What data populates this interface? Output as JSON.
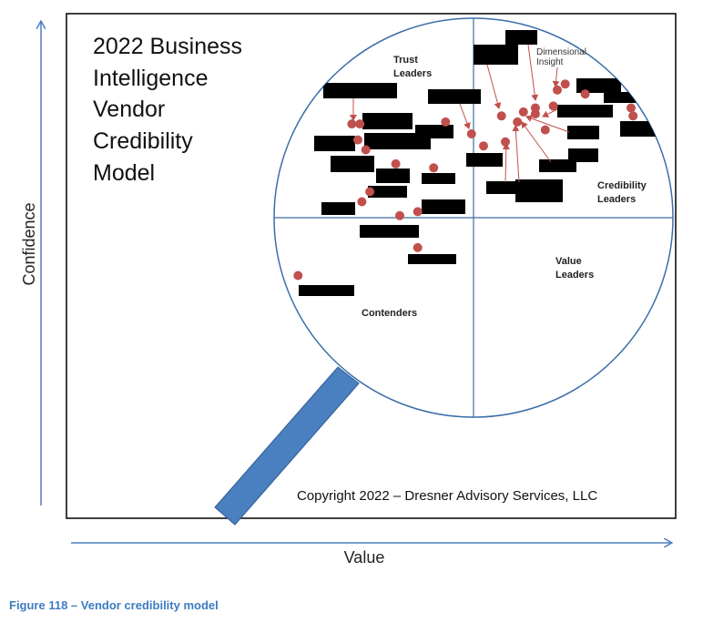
{
  "colors": {
    "axis_arrow": "#4a7fc0",
    "quadrant_line": "#3b6ea8",
    "handle": "#4a7fc0",
    "point": "#c0504d",
    "caption": "#3c7cc0",
    "redaction": "#000000"
  },
  "figure": {
    "caption": "Figure 118 – Vendor credibility model"
  },
  "chart_data": {
    "type": "scatter",
    "title_lines": [
      "2022 Business",
      "Intelligence",
      "Vendor",
      "Credibility",
      "Model"
    ],
    "xlabel": "Value",
    "ylabel": "Confidence",
    "copyright": "Copyright 2022 – Dresner Advisory Services, LLC",
    "quadrants": {
      "top_left": "Trust Leaders",
      "top_right": "Credibility Leaders",
      "bottom_left": "Contenders",
      "bottom_right": "Value Leaders"
    },
    "quadrant_label_lines": {
      "top_left": [
        "Trust",
        "Leaders"
      ],
      "top_right": [
        "Credibility",
        "Leaders"
      ],
      "bottom_left": [
        "Contenders"
      ],
      "bottom_right": [
        "Value",
        "Leaders"
      ]
    },
    "annotation": {
      "text": "Dimensional Insight",
      "lines": [
        "Dimensional",
        "Insight"
      ]
    },
    "axis_tick_labels": false,
    "grid": false,
    "quadrant_divider": {
      "x": 0,
      "y": 0
    },
    "xlim": [
      -1,
      1
    ],
    "ylim": [
      -1,
      1
    ],
    "points": [
      {
        "x": -0.61,
        "y": 0.47
      },
      {
        "x": -0.57,
        "y": 0.47
      },
      {
        "x": -0.58,
        "y": 0.39
      },
      {
        "x": -0.54,
        "y": 0.34
      },
      {
        "x": -0.39,
        "y": 0.27
      },
      {
        "x": -0.2,
        "y": 0.25
      },
      {
        "x": -0.52,
        "y": 0.13
      },
      {
        "x": -0.56,
        "y": 0.08
      },
      {
        "x": -0.37,
        "y": 0.01
      },
      {
        "x": -0.28,
        "y": 0.03
      },
      {
        "x": -0.28,
        "y": -0.15
      },
      {
        "x": -0.88,
        "y": -0.29
      },
      {
        "x": -0.14,
        "y": 0.48
      },
      {
        "x": -0.01,
        "y": 0.42
      },
      {
        "x": 0.05,
        "y": 0.36
      },
      {
        "x": 0.14,
        "y": 0.51
      },
      {
        "x": 0.22,
        "y": 0.48
      },
      {
        "x": 0.25,
        "y": 0.53
      },
      {
        "x": 0.31,
        "y": 0.55
      },
      {
        "x": 0.31,
        "y": 0.52
      },
      {
        "x": 0.4,
        "y": 0.56
      },
      {
        "x": 0.42,
        "y": 0.64
      },
      {
        "x": 0.56,
        "y": 0.62
      },
      {
        "x": 0.79,
        "y": 0.55
      },
      {
        "x": 0.8,
        "y": 0.51
      },
      {
        "x": 0.36,
        "y": 0.44
      },
      {
        "x": 0.16,
        "y": 0.38
      },
      {
        "x": 0.46,
        "y": 0.67
      }
    ]
  }
}
